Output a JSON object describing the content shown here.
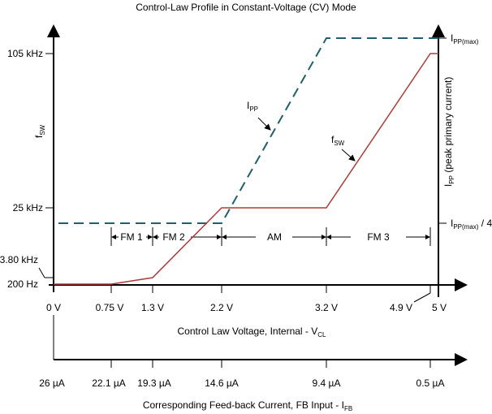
{
  "title": "Control-Law Profile in Constant-Voltage (CV) Mode",
  "colors": {
    "fsw": "#b03a3a",
    "ipp": "#1f5f6e"
  },
  "y_left": {
    "label_main": "f",
    "label_sub": "SW",
    "ticks": [
      "105 kHz",
      "25 kHz",
      "3.80 kHz",
      "200 Hz"
    ]
  },
  "y_right": {
    "label_main": "I",
    "label_sub": "PP",
    "label_rest": " (peak primary current)",
    "tick_max_main": "I",
    "tick_max_sub": "PP(max)",
    "tick_q_main": "I",
    "tick_q_sub": "PP(max)",
    "tick_q_rest": " / 4"
  },
  "x_axis": {
    "ticks": [
      "0 V",
      "0.75 V",
      "1.3 V",
      "2.2 V",
      "3.2 V",
      "4.9 V",
      "5 V"
    ],
    "label_main": "Control Law Voltage, Internal - V",
    "label_sub": "CL"
  },
  "x_axis2": {
    "ticks": [
      "26 µA",
      "22.1 µA",
      "19.3 µA",
      "14.6 µA",
      "9.4 µA",
      "0.5 µA"
    ],
    "label_main": "Corresponding Feed-back Current, FB Input - I",
    "label_sub": "FB"
  },
  "regions": [
    "FM 1",
    "FM 2",
    "AM",
    "FM 3"
  ],
  "curves": {
    "fsw_label_main": "f",
    "fsw_label_sub": "SW",
    "ipp_label_main": "I",
    "ipp_label_sub": "PP",
    "fsw_points": [
      [
        "0 V",
        "200 Hz"
      ],
      [
        "0.75 V",
        "200 Hz"
      ],
      [
        "1.3 V",
        "3.80 kHz"
      ],
      [
        "2.2 V",
        "25 kHz"
      ],
      [
        "3.2 V",
        "25 kHz"
      ],
      [
        "4.9 V",
        "105 kHz"
      ],
      [
        "5 V",
        "105 kHz"
      ]
    ],
    "ipp_points": [
      [
        "0 V",
        "IPP(max)/4"
      ],
      [
        "2.2 V",
        "IPP(max)/4"
      ],
      [
        "3.2 V",
        "IPP(max)"
      ],
      [
        "5 V",
        "IPP(max)"
      ]
    ]
  }
}
